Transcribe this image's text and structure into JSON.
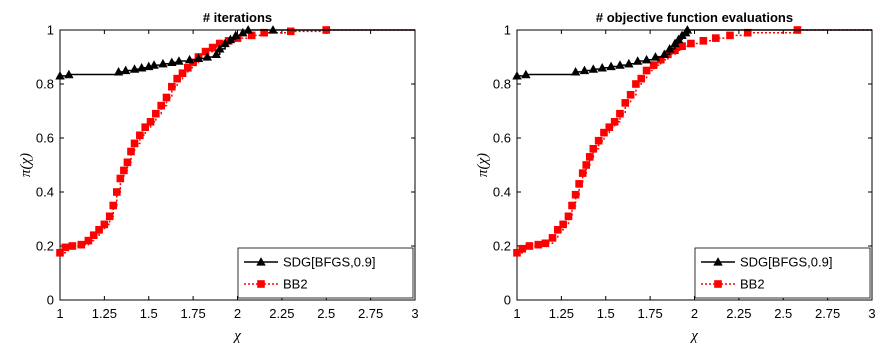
{
  "chart_data": [
    {
      "type": "line",
      "title": "# iterations",
      "xlabel": "χ",
      "ylabel": "π(χ)",
      "xlim": [
        1,
        3
      ],
      "ylim": [
        0,
        1
      ],
      "xticks": [
        "1",
        "1.25",
        "1.5",
        "1.75",
        "2",
        "2.25",
        "2.5",
        "2.75",
        "3"
      ],
      "yticks": [
        "0",
        "0.2",
        "0.4",
        "0.6",
        "0.8",
        "1"
      ],
      "legend_position": "bottom-right",
      "series": [
        {
          "name": "SDG[BFGS,0.9]",
          "color": "#000000",
          "marker": "triangle",
          "line": "solid",
          "x": [
            1.0,
            1.05,
            1.33,
            1.37,
            1.42,
            1.46,
            1.5,
            1.53,
            1.58,
            1.63,
            1.67,
            1.73,
            1.78,
            1.83,
            1.88,
            1.9,
            1.93,
            1.96,
            1.99,
            2.03,
            2.06,
            2.2,
            3.0
          ],
          "y": [
            0.83,
            0.835,
            0.845,
            0.85,
            0.855,
            0.86,
            0.865,
            0.87,
            0.875,
            0.88,
            0.885,
            0.89,
            0.895,
            0.9,
            0.91,
            0.93,
            0.95,
            0.965,
            0.98,
            0.99,
            1.0,
            1.0,
            1.0
          ]
        },
        {
          "name": "BB2",
          "color": "#ff0000",
          "marker": "square",
          "line": "dotted",
          "x": [
            1.0,
            1.03,
            1.07,
            1.12,
            1.16,
            1.19,
            1.22,
            1.25,
            1.28,
            1.3,
            1.32,
            1.34,
            1.36,
            1.38,
            1.4,
            1.42,
            1.45,
            1.48,
            1.51,
            1.54,
            1.57,
            1.6,
            1.63,
            1.66,
            1.69,
            1.72,
            1.75,
            1.78,
            1.82,
            1.86,
            1.9,
            1.95,
            2.0,
            2.08,
            2.15,
            2.3,
            2.5,
            3.0
          ],
          "y": [
            0.175,
            0.195,
            0.2,
            0.205,
            0.22,
            0.24,
            0.26,
            0.28,
            0.31,
            0.35,
            0.4,
            0.45,
            0.48,
            0.51,
            0.55,
            0.58,
            0.61,
            0.64,
            0.66,
            0.69,
            0.72,
            0.75,
            0.79,
            0.82,
            0.84,
            0.86,
            0.88,
            0.9,
            0.92,
            0.935,
            0.95,
            0.96,
            0.97,
            0.98,
            0.99,
            0.995,
            1.0,
            1.0
          ]
        }
      ]
    },
    {
      "type": "line",
      "title": "# objective function evaluations",
      "xlabel": "χ",
      "ylabel": "π(χ)",
      "xlim": [
        1,
        3
      ],
      "ylim": [
        0,
        1
      ],
      "xticks": [
        "1",
        "1.25",
        "1.5",
        "1.75",
        "2",
        "2.25",
        "2.5",
        "2.75",
        "3"
      ],
      "yticks": [
        "0",
        "0.2",
        "0.4",
        "0.6",
        "0.8",
        "1"
      ],
      "legend_position": "bottom-right",
      "series": [
        {
          "name": "SDG[BFGS,0.9]",
          "color": "#000000",
          "marker": "triangle",
          "line": "solid",
          "x": [
            1.0,
            1.05,
            1.33,
            1.38,
            1.43,
            1.48,
            1.53,
            1.58,
            1.63,
            1.68,
            1.73,
            1.78,
            1.83,
            1.86,
            1.89,
            1.91,
            1.93,
            1.95,
            1.96,
            3.0
          ],
          "y": [
            0.83,
            0.835,
            0.845,
            0.85,
            0.855,
            0.86,
            0.865,
            0.87,
            0.875,
            0.885,
            0.89,
            0.9,
            0.91,
            0.93,
            0.95,
            0.965,
            0.98,
            0.99,
            1.0,
            1.0
          ]
        },
        {
          "name": "BB2",
          "color": "#ff0000",
          "marker": "square",
          "line": "dotted",
          "x": [
            1.0,
            1.03,
            1.07,
            1.12,
            1.16,
            1.2,
            1.23,
            1.26,
            1.29,
            1.31,
            1.33,
            1.35,
            1.37,
            1.39,
            1.41,
            1.43,
            1.46,
            1.49,
            1.52,
            1.55,
            1.58,
            1.61,
            1.64,
            1.67,
            1.7,
            1.73,
            1.77,
            1.81,
            1.85,
            1.89,
            1.93,
            1.98,
            2.05,
            2.12,
            2.2,
            2.3,
            2.58,
            3.0
          ],
          "y": [
            0.175,
            0.19,
            0.2,
            0.205,
            0.21,
            0.23,
            0.26,
            0.28,
            0.31,
            0.35,
            0.39,
            0.43,
            0.47,
            0.5,
            0.53,
            0.56,
            0.59,
            0.62,
            0.64,
            0.66,
            0.69,
            0.73,
            0.76,
            0.8,
            0.82,
            0.85,
            0.87,
            0.89,
            0.91,
            0.925,
            0.94,
            0.95,
            0.96,
            0.97,
            0.98,
            0.99,
            1.0,
            1.0
          ]
        }
      ]
    }
  ]
}
